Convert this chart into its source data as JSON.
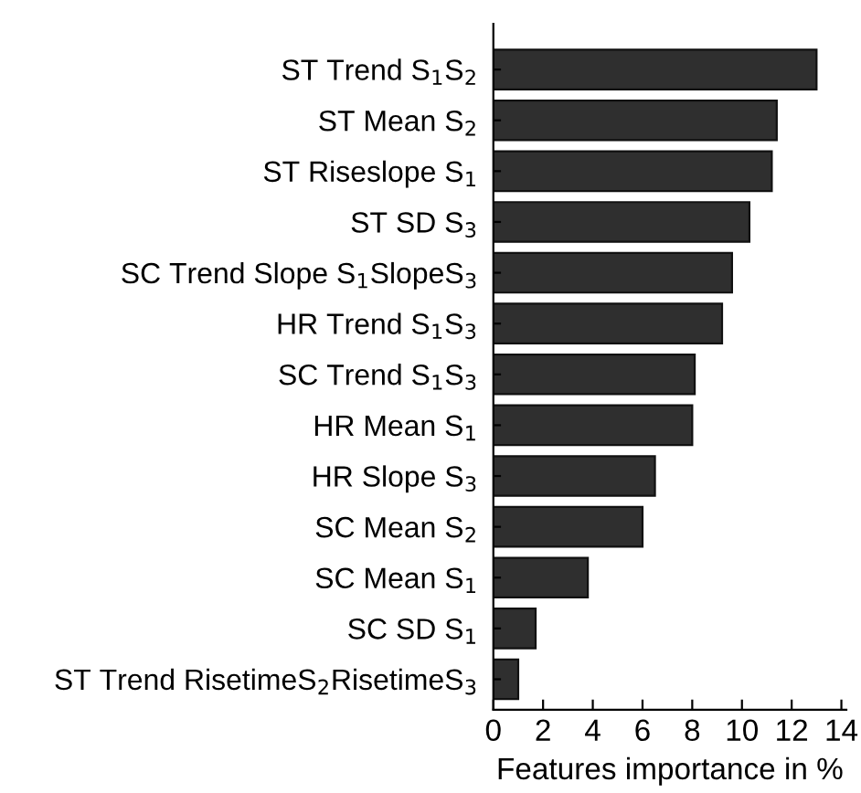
{
  "chart_data": {
    "type": "bar",
    "orientation": "horizontal",
    "xlabel": "Features importance in %",
    "categories": [
      "ST Trend S$_{1}$S$_{2}$",
      "ST Mean S$_{2}$",
      "ST Riseslope S$_{1}$",
      "ST SD S$_{3}$",
      "SC Trend Slope S$_{1}$SlopeS$_{3}$",
      "HR Trend S$_{1}$S$_{3}$",
      "SC Trend S$_{1}$S$_{3}$",
      "HR Mean S$_{1}$",
      "HR Slope S$_{3}$",
      "SC Mean S$_{2}$",
      "SC Mean S$_{1}$",
      "SC SD S$_{1}$",
      "ST Trend RisetimeS$_{2}$RisetimeS$_{3}$"
    ],
    "values": [
      13.0,
      11.4,
      11.2,
      10.3,
      9.6,
      9.2,
      8.1,
      8.0,
      6.5,
      6.0,
      3.8,
      1.7,
      1.0
    ],
    "color": "#2f2f2f",
    "xlim": [
      0,
      14.2
    ],
    "xticks": [
      0,
      2,
      4,
      6,
      8,
      10,
      12,
      14
    ],
    "grid": false
  }
}
